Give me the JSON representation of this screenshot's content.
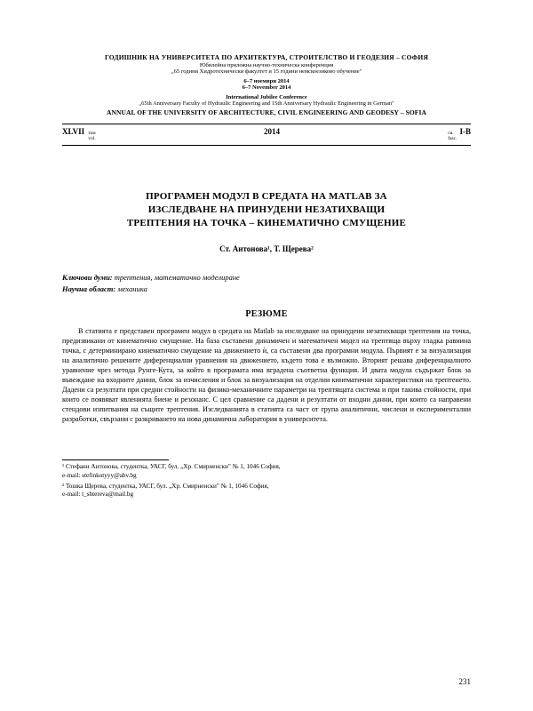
{
  "header": {
    "publisher_bg": "ГОДИШНИК НА УНИВЕРСИТЕТА ПО АРХИТЕКТУРА, СТРОИТЕЛСТВО И ГЕОДЕЗИЯ – СОФИЯ",
    "conf_bg_1": "Юбилейна приложна научно-техническа конференция",
    "conf_bg_2": "„65 години Хидротехнически факултет и 15 години немскоезиково обучение\"",
    "date_bg": "6–7 ноември 2014",
    "date_en": "6–7 November 2014",
    "conf_en_1": "International Jubilee Conference",
    "conf_en_2": "„65th Anniversary Faculty of Hydraulic Engineering and 15th Anniversary Hydraulic Engineering in German\"",
    "publisher_en": "ANNUAL OF THE UNIVERSITY OF ARCHITECTURE, CIVIL ENGINEERING AND GEODESY – SOFIA"
  },
  "volume": {
    "vol": "XLVII",
    "vol_label_bg": "том",
    "vol_label_en": "vol.",
    "year": "2014",
    "issue_label_bg": "св.",
    "issue_label_en": "fasc.",
    "issue": "I-B"
  },
  "paper": {
    "title_l1": "ПРОГРАМЕН МОДУЛ В СРЕДАТА НА MATLAB ЗА",
    "title_l2": "ИЗСЛЕДВАНЕ НА ПРИНУДЕНИ НЕЗАТИХВАЩИ",
    "title_l3": "ТРЕПТЕНИЯ НА ТОЧКА – КИНЕМАТИЧНО СМУЩЕНИЕ",
    "authors": "Ст. Антонова¹, Т. Щерева²",
    "keywords_label": "Ключови думи:",
    "keywords": "трептения, математично моделиране",
    "field_label": "Научна област:",
    "field": "механика",
    "resume_heading": "РЕЗЮМЕ",
    "abstract": "В статията е представен програмен модул в средата на Matlab за изследване на принудени незатихващи трептения на точка, предизвикани от кинематично смущение. На база съставени динамичен и математичен модел на трептяща върху гладка равнина точка, с детерминирано кинематично смущение на движението ѝ, са съставени два програмни модула. Първият е за визуализация на аналитично решените диференциални уравнения на движението, където това е възможно. Вторият решава диференциалното уравнение чрез метода Рунге-Кута, за който в програмата има вградена съответна функция. И двата модула съдържат блок за въвеждане на входните данни, блок за изчисления и блок за визуализация на отделни кинематични характеристики на трептенето. Дадени са резултати при средни стойности на физико-механичните параметри на трептящата система и при такива стойности, при които се появяват явленията биене и резонанс. С цел сравнение са дадени и резултати от входни данни, при които са направени стендови изпитвания на същите трептения. Изследванията в статията са част от група аналитични, числени и експериментални разработки, свързани с разкриването на нова динамична лаборатория в университета."
  },
  "footnotes": {
    "f1": "¹ Стефани Антонова, студентка, УАСГ, бул. „Хр. Смирненски\" № 1, 1046 София,",
    "f1b": "e-mail: stefinkotyyy@abv.bg",
    "f2": "² Тошка Щерева, студентка, УАСГ, бул. „Хр. Смирненски\" № 1, 1046 София,",
    "f2b": "e-mail: t_shtereva@mail.bg"
  },
  "page_number": "231"
}
